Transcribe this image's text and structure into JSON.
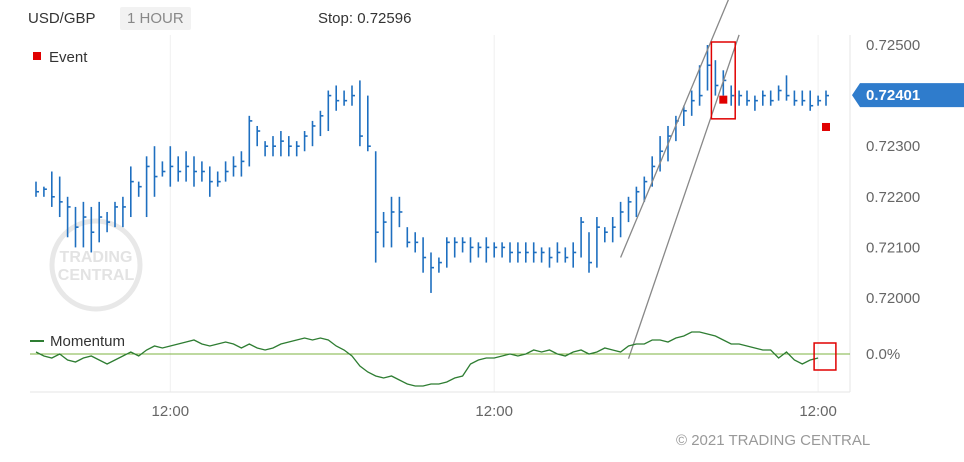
{
  "header": {
    "pair": "USD/GBP",
    "timeframe": "1 HOUR",
    "stop": "Stop: 0.72596"
  },
  "legend": {
    "event": "Event",
    "momentum": "Momentum"
  },
  "watermark": {
    "line1": "TRADING",
    "line2": "CENTRAL"
  },
  "copyright": "© 2021 TRADING CENTRAL",
  "colors": {
    "price": "#1e6fc0",
    "momentum_bars": "#2e7d32",
    "event": "#e00000",
    "channel": "#888888",
    "current_price_bg": "#2f7ccc",
    "zero_line": "#7cb342"
  },
  "chart_data": [
    {
      "type": "ohlc",
      "ylim": [
        0.72,
        0.725
      ],
      "yticks": [
        "0.72500",
        "0.72400",
        "0.72300",
        "0.72200",
        "0.72100",
        "0.72000"
      ],
      "xticks": [
        "12:00",
        "12:00",
        "12:00"
      ],
      "xtick_bars": [
        17,
        58,
        99
      ],
      "current_price": "0.72401",
      "series": [
        {
          "bars": [
            [
              0.7223,
              0.722,
              0.7221
            ],
            [
              0.7222,
              0.722,
              0.72215
            ],
            [
              0.7225,
              0.7218,
              0.722
            ],
            [
              0.7224,
              0.7216,
              0.7219
            ],
            [
              0.722,
              0.7212,
              0.7218
            ],
            [
              0.7218,
              0.721,
              0.7214
            ],
            [
              0.7219,
              0.721,
              0.7216
            ],
            [
              0.7218,
              0.7209,
              0.7213
            ],
            [
              0.7219,
              0.7211,
              0.7216
            ],
            [
              0.7217,
              0.7213,
              0.7215
            ],
            [
              0.7219,
              0.7214,
              0.7218
            ],
            [
              0.722,
              0.7214,
              0.7218
            ],
            [
              0.7226,
              0.7216,
              0.7223
            ],
            [
              0.7223,
              0.722,
              0.7222
            ],
            [
              0.7228,
              0.7216,
              0.7226
            ],
            [
              0.723,
              0.722,
              0.7224
            ],
            [
              0.7227,
              0.7224,
              0.7225
            ],
            [
              0.723,
              0.7222,
              0.7226
            ],
            [
              0.7228,
              0.7223,
              0.7225
            ],
            [
              0.7229,
              0.7223,
              0.7226
            ],
            [
              0.7228,
              0.7222,
              0.7225
            ],
            [
              0.7227,
              0.7223,
              0.7225
            ],
            [
              0.7226,
              0.722,
              0.7223
            ],
            [
              0.7225,
              0.7222,
              0.7223
            ],
            [
              0.7227,
              0.7223,
              0.7225
            ],
            [
              0.7228,
              0.7224,
              0.7226
            ],
            [
              0.7229,
              0.7224,
              0.7227
            ],
            [
              0.7236,
              0.7226,
              0.7235
            ],
            [
              0.7234,
              0.723,
              0.7233
            ],
            [
              0.7231,
              0.7228,
              0.723
            ],
            [
              0.7232,
              0.7228,
              0.723
            ],
            [
              0.7233,
              0.7228,
              0.7231
            ],
            [
              0.7232,
              0.7228,
              0.723
            ],
            [
              0.7231,
              0.7228,
              0.723
            ],
            [
              0.7233,
              0.7229,
              0.7232
            ],
            [
              0.7235,
              0.723,
              0.7234
            ],
            [
              0.7237,
              0.7232,
              0.7236
            ],
            [
              0.7241,
              0.7233,
              0.724
            ],
            [
              0.7242,
              0.7237,
              0.7239
            ],
            [
              0.7241,
              0.7238,
              0.7239
            ],
            [
              0.7242,
              0.7238,
              0.724
            ],
            [
              0.7243,
              0.723,
              0.7232
            ],
            [
              0.724,
              0.7229,
              0.723
            ],
            [
              0.7229,
              0.7207,
              0.7213
            ],
            [
              0.7217,
              0.721,
              0.7215
            ],
            [
              0.722,
              0.721,
              0.7217
            ],
            [
              0.722,
              0.7214,
              0.7217
            ],
            [
              0.7214,
              0.721,
              0.7211
            ],
            [
              0.7213,
              0.7209,
              0.7211
            ],
            [
              0.7212,
              0.7205,
              0.7208
            ],
            [
              0.7209,
              0.7201,
              0.7206
            ],
            [
              0.7208,
              0.7205,
              0.7207
            ],
            [
              0.7212,
              0.7206,
              0.7211
            ],
            [
              0.7212,
              0.7208,
              0.7211
            ],
            [
              0.7212,
              0.7209,
              0.7211
            ],
            [
              0.7212,
              0.7207,
              0.721
            ],
            [
              0.7211,
              0.7208,
              0.721
            ],
            [
              0.7212,
              0.7207,
              0.721
            ],
            [
              0.7211,
              0.7208,
              0.721
            ],
            [
              0.7211,
              0.7208,
              0.721
            ],
            [
              0.7211,
              0.7207,
              0.7209
            ],
            [
              0.7211,
              0.7207,
              0.7209
            ],
            [
              0.7211,
              0.7207,
              0.7209
            ],
            [
              0.7211,
              0.7207,
              0.7209
            ],
            [
              0.721,
              0.7207,
              0.7209
            ],
            [
              0.721,
              0.7206,
              0.7208
            ],
            [
              0.7211,
              0.7207,
              0.7209
            ],
            [
              0.721,
              0.7207,
              0.7208
            ],
            [
              0.7211,
              0.7206,
              0.7209
            ],
            [
              0.7216,
              0.7208,
              0.7215
            ],
            [
              0.7213,
              0.7205,
              0.7207
            ],
            [
              0.7216,
              0.7206,
              0.7214
            ],
            [
              0.7214,
              0.7211,
              0.7213
            ],
            [
              0.7216,
              0.7211,
              0.7214
            ],
            [
              0.7219,
              0.7212,
              0.7217
            ],
            [
              0.722,
              0.7215,
              0.7219
            ],
            [
              0.7222,
              0.7216,
              0.7221
            ],
            [
              0.7224,
              0.7219,
              0.7223
            ],
            [
              0.7228,
              0.7222,
              0.7226
            ],
            [
              0.7232,
              0.7225,
              0.7229
            ],
            [
              0.7234,
              0.7227,
              0.7232
            ],
            [
              0.7236,
              0.7231,
              0.7235
            ],
            [
              0.7238,
              0.7234,
              0.7237
            ],
            [
              0.7241,
              0.7236,
              0.7239
            ],
            [
              0.7246,
              0.7238,
              0.724
            ],
            [
              0.725,
              0.7241,
              0.7246
            ],
            [
              0.7247,
              0.724,
              0.7242
            ],
            [
              0.7245,
              0.724,
              0.7243
            ],
            [
              0.7242,
              0.7238,
              0.724
            ],
            [
              0.7241,
              0.7238,
              0.724
            ],
            [
              0.7241,
              0.7238,
              0.7239
            ],
            [
              0.724,
              0.7237,
              0.7239
            ],
            [
              0.7241,
              0.7238,
              0.724
            ],
            [
              0.7241,
              0.7238,
              0.7239
            ],
            [
              0.7242,
              0.7239,
              0.7241
            ],
            [
              0.7244,
              0.7239,
              0.724
            ],
            [
              0.7241,
              0.7238,
              0.7239
            ],
            [
              0.7241,
              0.7238,
              0.7239
            ],
            [
              0.7241,
              0.7237,
              0.7238
            ],
            [
              0.724,
              0.7238,
              0.7239
            ],
            [
              0.7241,
              0.7238,
              0.724
            ]
          ]
        }
      ],
      "channel": [
        {
          "from": [
            75,
            0.7188
          ],
          "to": [
            89,
            0.7252
          ]
        },
        {
          "from": [
            74,
            0.7208
          ],
          "to": [
            89,
            0.7264
          ]
        }
      ],
      "events": [
        {
          "bar": 87,
          "value": 0.72392
        },
        {
          "bar": 100,
          "value": 0.72338
        }
      ],
      "highlights": [
        {
          "bar_from": 86,
          "bar_to": 88,
          "y_top": 0.725,
          "y_bottom": 0.7236
        }
      ]
    },
    {
      "type": "line",
      "name": "Momentum",
      "ytick": "0.0%",
      "ylim": [
        -0.35,
        0.35
      ],
      "values": [
        0.02,
        -0.02,
        -0.04,
        0.0,
        -0.06,
        -0.08,
        -0.04,
        -0.02,
        -0.06,
        -0.1,
        -0.06,
        -0.02,
        0.02,
        -0.02,
        0.04,
        0.08,
        0.06,
        0.08,
        0.1,
        0.12,
        0.14,
        0.1,
        0.08,
        0.1,
        0.12,
        0.1,
        0.06,
        0.1,
        0.06,
        0.04,
        0.06,
        0.1,
        0.12,
        0.14,
        0.16,
        0.14,
        0.16,
        0.14,
        0.08,
        0.04,
        -0.02,
        -0.12,
        -0.18,
        -0.22,
        -0.24,
        -0.22,
        -0.26,
        -0.3,
        -0.32,
        -0.32,
        -0.3,
        -0.3,
        -0.28,
        -0.24,
        -0.22,
        -0.1,
        -0.06,
        -0.04,
        -0.04,
        -0.02,
        0.0,
        -0.02,
        0.0,
        0.04,
        0.02,
        0.04,
        0.0,
        -0.02,
        0.02,
        0.04,
        0.0,
        0.02,
        0.06,
        0.04,
        0.02,
        0.08,
        0.1,
        0.1,
        0.14,
        0.14,
        0.12,
        0.16,
        0.18,
        0.22,
        0.22,
        0.2,
        0.18,
        0.14,
        0.1,
        0.1,
        0.08,
        0.06,
        0.04,
        0.04,
        -0.04,
        0.02,
        -0.06,
        -0.1,
        -0.06,
        -0.04
      ],
      "highlights": [
        {
          "index_from": 99,
          "index_to": 101
        }
      ]
    }
  ]
}
